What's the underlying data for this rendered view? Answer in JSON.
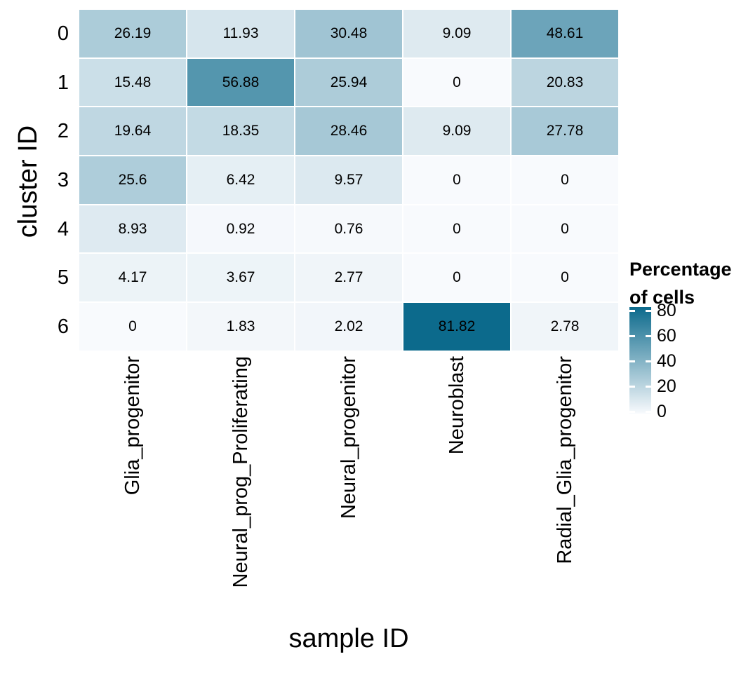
{
  "chart_data": {
    "type": "heatmap",
    "xlabel": "sample ID",
    "ylabel": "cluster ID",
    "x_categories": [
      "Glia_progenitor",
      "Neural_prog_Proliferating",
      "Neural_progenitor",
      "Neuroblast",
      "Radial_Glia_progenitor"
    ],
    "y_categories": [
      "0",
      "1",
      "2",
      "3",
      "4",
      "5",
      "6"
    ],
    "values": [
      [
        26.19,
        11.93,
        30.48,
        9.09,
        48.61
      ],
      [
        15.48,
        56.88,
        25.94,
        0,
        20.83
      ],
      [
        19.64,
        18.35,
        28.46,
        9.09,
        27.78
      ],
      [
        25.6,
        6.42,
        9.57,
        0,
        0
      ],
      [
        8.93,
        0.92,
        0.76,
        0,
        0
      ],
      [
        4.17,
        3.67,
        2.77,
        0,
        0
      ],
      [
        0,
        1.83,
        2.02,
        81.82,
        2.78
      ]
    ],
    "legend": {
      "title_line1": "Percentage",
      "title_line2": "of cells",
      "ticks": [
        80,
        60,
        40,
        20,
        0
      ]
    },
    "colors": {
      "low": "#F8FAFD",
      "high": "#0C6A8C",
      "cell_text": "#000000",
      "background": "#FFFFFF"
    },
    "scale": {
      "min": 0,
      "color_max": 81.82,
      "legend_max": 82.5
    },
    "layout": {
      "grid_on": false,
      "legend_position": "right",
      "x_labels_rotated_90": true
    }
  }
}
